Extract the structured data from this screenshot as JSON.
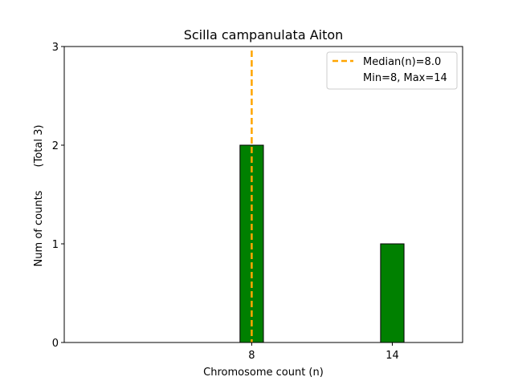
{
  "chart_data": {
    "type": "bar",
    "title": "Scilla campanulata Aiton",
    "xlabel": "Chromosome count (n)",
    "ylabel": "Num of counts",
    "ylabel_total": "(Total 3)",
    "x": [
      8,
      14
    ],
    "values": [
      2,
      1
    ],
    "xlim": [
      0,
      17
    ],
    "ylim": [
      0,
      3
    ],
    "xticks": [
      8,
      14
    ],
    "yticks": [
      0,
      1,
      2,
      3
    ],
    "bar_width": 1,
    "bar_color": "#008000",
    "bar_edge_color": "#000000",
    "median": 8.0,
    "median_color": "#ffa500",
    "legend": {
      "placement": "top-right",
      "entries": [
        "Median(n)=8.0",
        "Min=8, Max=14"
      ]
    },
    "grid": false
  }
}
